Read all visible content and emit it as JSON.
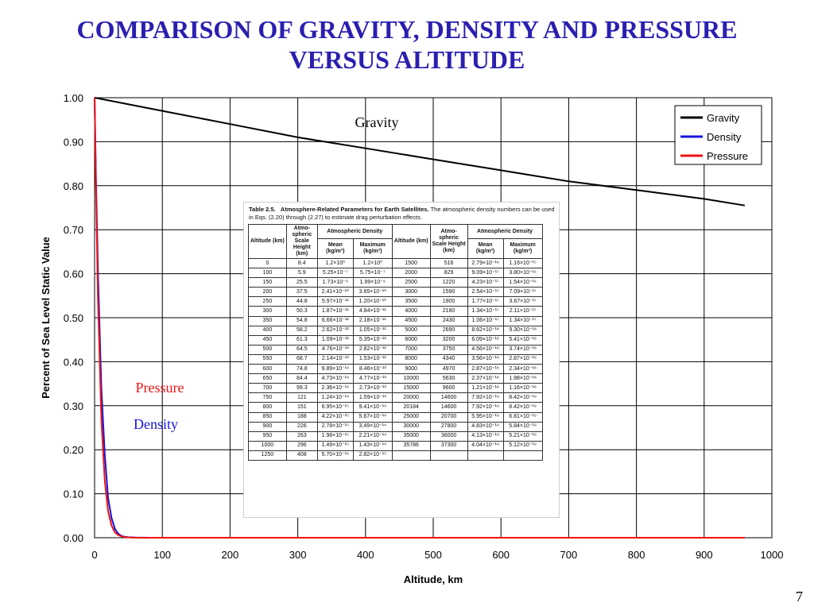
{
  "slide": {
    "title_line1": "COMPARISON OF GRAVITY, DENSITY AND PRESSURE",
    "title_line2": "VERSUS ALTITUDE",
    "page_number": "7"
  },
  "colors": {
    "title": "#2a1fb0",
    "gravity": "#000000",
    "density": "#1515e0",
    "pressure": "#ee1111"
  },
  "annotations": {
    "gravity": "Gravity",
    "pressure": "Pressure",
    "density": "Density"
  },
  "chart_data": {
    "type": "line",
    "xlabel": "Altitude, km",
    "ylabel": "Percent of Sea Level Static Value",
    "xlim": [
      0,
      1000
    ],
    "ylim": [
      0,
      1.0
    ],
    "xticks": [
      "0",
      "100",
      "200",
      "300",
      "400",
      "500",
      "600",
      "700",
      "800",
      "900",
      "1000"
    ],
    "yticks": [
      "0.00",
      "0.10",
      "0.20",
      "0.30",
      "0.40",
      "0.50",
      "0.60",
      "0.70",
      "0.80",
      "0.90",
      "1.00"
    ],
    "grid": true,
    "legend_position": "top-right",
    "series": [
      {
        "name": "Gravity",
        "x": [
          0,
          100,
          200,
          300,
          400,
          500,
          600,
          700,
          800,
          900,
          960
        ],
        "y": [
          1.0,
          0.97,
          0.94,
          0.91,
          0.885,
          0.86,
          0.835,
          0.81,
          0.79,
          0.77,
          0.755
        ]
      },
      {
        "name": "Density",
        "x": [
          0,
          2,
          5,
          10,
          15,
          20,
          25,
          30,
          35,
          40,
          45,
          50,
          60,
          80,
          100,
          200,
          500,
          960
        ],
        "y": [
          1.0,
          0.82,
          0.6,
          0.34,
          0.19,
          0.09,
          0.045,
          0.02,
          0.009,
          0.004,
          0.002,
          0.001,
          0.0003,
          0.0,
          0.0,
          0.0,
          0.0,
          0.0
        ]
      },
      {
        "name": "Pressure",
        "x": [
          0,
          2,
          5,
          10,
          15,
          20,
          25,
          30,
          35,
          40,
          45,
          50,
          60,
          80,
          100,
          200,
          500,
          960
        ],
        "y": [
          1.0,
          0.8,
          0.54,
          0.27,
          0.13,
          0.06,
          0.028,
          0.012,
          0.006,
          0.003,
          0.0015,
          0.0008,
          0.0002,
          0.0,
          0.0,
          0.0,
          0.0,
          0.0
        ]
      }
    ]
  },
  "inset_table": {
    "caption_label": "Table 2.5.",
    "caption_title": "Atmosphere-Related Parameters for Earth Satellites.",
    "caption_rest": "The atmospheric density numbers can be used in Eqs. (2.20) through (2.27) to estimate drag perturbation effects.",
    "headers": {
      "altitude": "Altitude (km)",
      "scale_height": "Atmo-spheric Scale Height (km)",
      "density_group": "Atmospheric Density",
      "mean": "Mean (kg/m³)",
      "maximum": "Maximum (kg/m³)"
    },
    "rows": [
      [
        "0",
        "8.4",
        "1.2×10⁰",
        "1.2×10⁰",
        "1500",
        "516",
        "2.79×10⁻¹⁶",
        "1.16×10⁻¹⁵"
      ],
      [
        "100",
        "5.9",
        "5.25×10⁻⁷",
        "5.75×10⁻⁷",
        "2000",
        "829",
        "9.09×10⁻¹⁷",
        "3.80×10⁻¹⁶"
      ],
      [
        "150",
        "25.5",
        "1.73×10⁻⁹",
        "1.99×10⁻⁹",
        "2500",
        "1220",
        "4.23×10⁻¹⁷",
        "1.54×10⁻¹⁶"
      ],
      [
        "200",
        "37.5",
        "2.41×10⁻¹⁰",
        "3.65×10⁻¹⁰",
        "3000",
        "1590",
        "2.54×10⁻¹⁷",
        "7.09×10⁻¹⁷"
      ],
      [
        "250",
        "44.8",
        "5.97×10⁻¹¹",
        "1.20×10⁻¹⁰",
        "3500",
        "1900",
        "1.77×10⁻¹⁷",
        "3.67×10⁻¹⁷"
      ],
      [
        "300",
        "50.3",
        "1.87×10⁻¹¹",
        "4.84×10⁻¹¹",
        "4000",
        "2180",
        "1.34×10⁻¹⁷",
        "2.11×10⁻¹⁷"
      ],
      [
        "350",
        "54.8",
        "6.66×10⁻¹²",
        "2.18×10⁻¹¹",
        "4500",
        "2430",
        "1.06×10⁻¹⁷",
        "1.34×10⁻¹⁷"
      ],
      [
        "400",
        "58.2",
        "2.62×10⁻¹²",
        "1.05×10⁻¹¹",
        "5000",
        "2690",
        "8.62×10⁻¹⁸",
        "9.30×10⁻¹⁸"
      ],
      [
        "450",
        "61.3",
        "1.09×10⁻¹²",
        "5.35×10⁻¹²",
        "6000",
        "3200",
        "6.09×10⁻¹⁸",
        "5.41×10⁻¹⁸"
      ],
      [
        "500",
        "64.5",
        "4.76×10⁻¹³",
        "2.82×10⁻¹²",
        "7000",
        "3750",
        "4.56×10⁻¹⁸",
        "3.74×10⁻¹⁸"
      ],
      [
        "550",
        "68.7",
        "2.14×10⁻¹³",
        "1.53×10⁻¹²",
        "8000",
        "4340",
        "3.56×10⁻¹⁸",
        "2.87×10⁻¹⁸"
      ],
      [
        "600",
        "74.8",
        "9.89×10⁻¹⁴",
        "8.46×10⁻¹³",
        "9000",
        "4970",
        "2.87×10⁻¹⁸",
        "2.34×10⁻¹⁸"
      ],
      [
        "650",
        "84.4",
        "4.73×10⁻¹⁴",
        "4.77×10⁻¹³",
        "10000",
        "5630",
        "2.37×10⁻¹⁸",
        "1.98×10⁻¹⁸"
      ],
      [
        "700",
        "99.3",
        "2.36×10⁻¹⁴",
        "2.73×10⁻¹³",
        "15000",
        "9600",
        "1.21×10⁻¹⁸",
        "1.16×10⁻¹⁸"
      ],
      [
        "750",
        "121",
        "1.24×10⁻¹⁴",
        "1.59×10⁻¹³",
        "20000",
        "14600",
        "7.92×10⁻¹⁹",
        "8.42×10⁻¹⁹"
      ],
      [
        "800",
        "151",
        "6.95×10⁻¹⁵",
        "9.41×10⁻¹⁴",
        "20184",
        "14600",
        "7.92×10⁻¹⁹",
        "8.42×10⁻¹⁹"
      ],
      [
        "850",
        "188",
        "4.22×10⁻¹⁵",
        "5.67×10⁻¹⁴",
        "25000",
        "20700",
        "5.95×10⁻¹⁹",
        "6.81×10⁻¹⁹"
      ],
      [
        "900",
        "226",
        "2.78×10⁻¹⁵",
        "3.49×10⁻¹⁴",
        "30000",
        "27800",
        "4.83×10⁻¹⁹",
        "5.84×10⁻¹⁹"
      ],
      [
        "950",
        "263",
        "1.98×10⁻¹⁵",
        "2.21×10⁻¹⁴",
        "35000",
        "36000",
        "4.13×10⁻¹⁹",
        "5.21×10⁻¹⁹"
      ],
      [
        "1000",
        "296",
        "1.49×10⁻¹⁵",
        "1.43×10⁻¹⁴",
        "35786",
        "37300",
        "4.04×10⁻¹⁹",
        "5.12×10⁻¹⁹"
      ],
      [
        "1250",
        "408",
        "5.70×10⁻¹⁶",
        "2.82×10⁻¹⁵",
        "",
        "",
        "",
        ""
      ]
    ]
  }
}
